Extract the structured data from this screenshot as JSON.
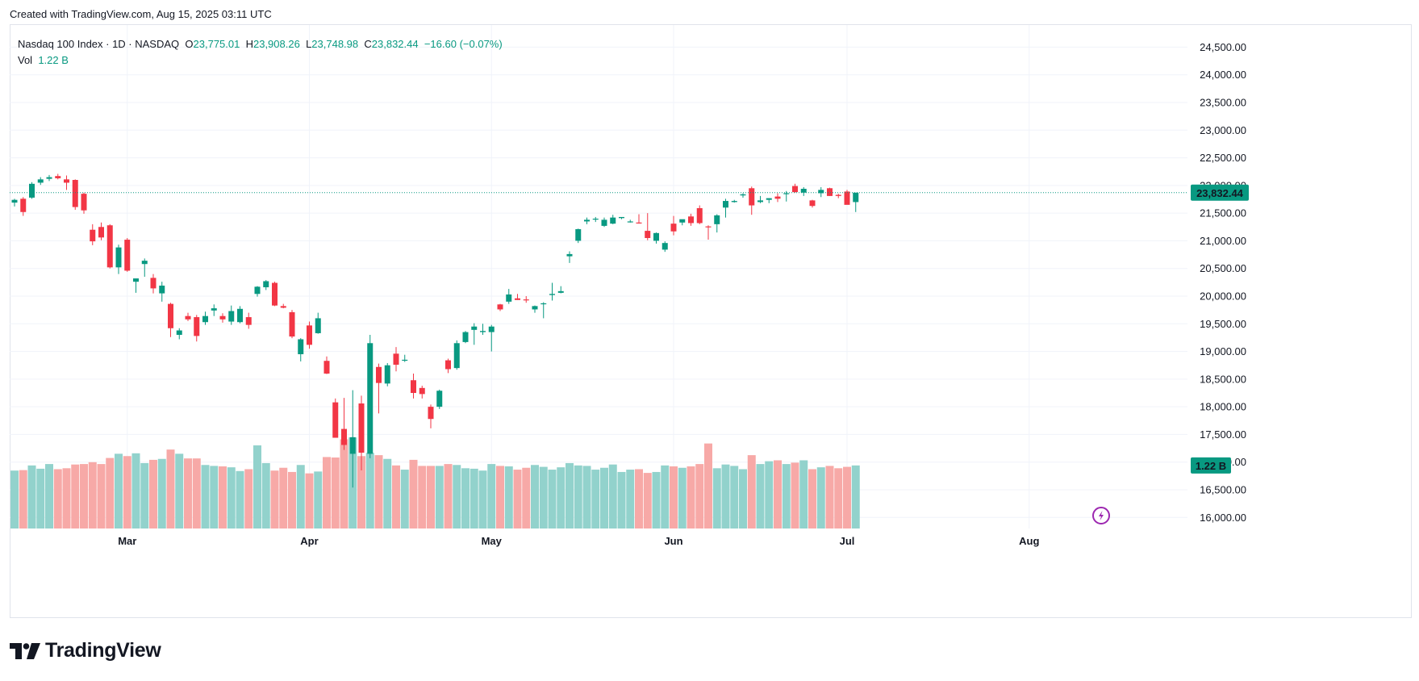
{
  "header": {
    "credit": "Created with TradingView.com, Aug 15, 2025 03:11 UTC"
  },
  "legend": {
    "symbol": "Nasdaq 100 Index · 1D · NASDAQ",
    "o_label": "O",
    "o_value": "23,775.01",
    "h_label": "H",
    "h_value": "23,908.26",
    "l_label": "L",
    "l_value": "23,748.98",
    "c_label": "C",
    "c_value": "23,832.44",
    "change": "−16.60 (−0.07%)",
    "vol_label": "Vol",
    "vol_value": "1.22 B"
  },
  "branding": {
    "name": "TradingView",
    "logo_icon": "tradingview-logo-icon",
    "lightning_icon": "lightning-icon"
  },
  "colors": {
    "up": "#089981",
    "down": "#f23645",
    "up_vol": "#92d2cc",
    "down_vol": "#f7a9a7",
    "grid": "#f0f3fa",
    "price_line": "#089981"
  },
  "chart_data": {
    "type": "candlestick",
    "title": "Nasdaq 100 Index · 1D · NASDAQ",
    "ylim": [
      15800,
      24900
    ],
    "y_ticks": [
      "24,500.00",
      "24,000.00",
      "23,500.00",
      "23,000.00",
      "22,500.00",
      "22,000.00",
      "21,500.00",
      "21,000.00",
      "20,500.00",
      "20,000.00",
      "19,500.00",
      "19,000.00",
      "18,500.00",
      "18,000.00",
      "17,500.00",
      "17,000.00",
      "16,500.00",
      "16,000.00"
    ],
    "x_labels": [
      {
        "label": "Mar",
        "index": 13
      },
      {
        "label": "Apr",
        "index": 34
      },
      {
        "label": "May",
        "index": 55
      },
      {
        "label": "Jun",
        "index": 76
      },
      {
        "label": "Jul",
        "index": 96
      },
      {
        "label": "Aug",
        "index": 117
      }
    ],
    "last_price_label": "23,832.44",
    "last_volume_label": "1.22 B",
    "volume_max": 1.9,
    "candles": [
      [
        21690,
        21760,
        21620,
        21740,
        1.24
      ],
      [
        21760,
        21790,
        21450,
        21520,
        1.25
      ],
      [
        21780,
        22060,
        21760,
        22030,
        1.35
      ],
      [
        22050,
        22150,
        22010,
        22110,
        1.28
      ],
      [
        22120,
        22190,
        22080,
        22150,
        1.38
      ],
      [
        22170,
        22210,
        22110,
        22130,
        1.27
      ],
      [
        22110,
        22180,
        21920,
        22050,
        1.29
      ],
      [
        22100,
        22110,
        21560,
        21610,
        1.37
      ],
      [
        21850,
        21870,
        21490,
        21550,
        1.38
      ],
      [
        21200,
        21300,
        20920,
        20990,
        1.42
      ],
      [
        21250,
        21330,
        21010,
        21060,
        1.38
      ],
      [
        21280,
        21300,
        20500,
        20520,
        1.51
      ],
      [
        20520,
        20930,
        20400,
        20880,
        1.6
      ],
      [
        21020,
        21050,
        20440,
        20460,
        1.55
      ],
      [
        20260,
        20300,
        20060,
        20320,
        1.61
      ],
      [
        20580,
        20680,
        20350,
        20640,
        1.4
      ],
      [
        20330,
        20400,
        20050,
        20140,
        1.47
      ],
      [
        20050,
        20260,
        19900,
        20190,
        1.49
      ],
      [
        19860,
        19880,
        19260,
        19420,
        1.69
      ],
      [
        19300,
        19420,
        19220,
        19380,
        1.6
      ],
      [
        19640,
        19700,
        19550,
        19580,
        1.5
      ],
      [
        19620,
        19660,
        19180,
        19280,
        1.5
      ],
      [
        19530,
        19720,
        19480,
        19640,
        1.36
      ],
      [
        19740,
        19850,
        19640,
        19780,
        1.34
      ],
      [
        19640,
        19690,
        19520,
        19580,
        1.33
      ],
      [
        19540,
        19830,
        19480,
        19730,
        1.31
      ],
      [
        19530,
        19820,
        19510,
        19770,
        1.23
      ],
      [
        19620,
        19700,
        19410,
        19480,
        1.27
      ],
      [
        20040,
        20180,
        19990,
        20170,
        1.78
      ],
      [
        20160,
        20290,
        20110,
        20270,
        1.4
      ],
      [
        20240,
        20260,
        19820,
        19830,
        1.24
      ],
      [
        19820,
        19860,
        19780,
        19790,
        1.3
      ],
      [
        19710,
        19750,
        19240,
        19270,
        1.21
      ],
      [
        18950,
        19240,
        18820,
        19220,
        1.36
      ],
      [
        19470,
        19540,
        19050,
        19120,
        1.18
      ],
      [
        19330,
        19700,
        19320,
        19600,
        1.22
      ],
      [
        18830,
        18910,
        18590,
        18600,
        1.53
      ],
      [
        18080,
        18150,
        17500,
        17440,
        1.52
      ],
      [
        17600,
        18160,
        17220,
        17310,
        1.91
      ],
      [
        17150,
        18300,
        16540,
        17450,
        1.95
      ],
      [
        18060,
        18200,
        16850,
        17170,
        1.55
      ],
      [
        17150,
        19300,
        17070,
        19150,
        1.62
      ],
      [
        18720,
        18780,
        17880,
        18430,
        1.57
      ],
      [
        18420,
        18790,
        18370,
        18750,
        1.49
      ],
      [
        18960,
        19080,
        18640,
        18760,
        1.35
      ],
      [
        18840,
        18940,
        18810,
        18850,
        1.26
      ],
      [
        18480,
        18600,
        18150,
        18250,
        1.47
      ],
      [
        18340,
        18380,
        18150,
        18230,
        1.34
      ],
      [
        18000,
        18040,
        17610,
        17780,
        1.34
      ],
      [
        18000,
        18310,
        17960,
        18290,
        1.34
      ],
      [
        18840,
        18870,
        18610,
        18680,
        1.38
      ],
      [
        18700,
        19200,
        18670,
        19150,
        1.36
      ],
      [
        19170,
        19370,
        19150,
        19350,
        1.29
      ],
      [
        19390,
        19510,
        19120,
        19450,
        1.28
      ],
      [
        19350,
        19500,
        19300,
        19370,
        1.24
      ],
      [
        19350,
        19480,
        19000,
        19450,
        1.38
      ],
      [
        19850,
        19860,
        19730,
        19760,
        1.34
      ],
      [
        19900,
        20130,
        19860,
        20030,
        1.33
      ],
      [
        19960,
        20040,
        19930,
        19930,
        1.26
      ],
      [
        19940,
        20000,
        19880,
        19930,
        1.3
      ],
      [
        19760,
        19830,
        19700,
        19820,
        1.36
      ],
      [
        19870,
        19890,
        19600,
        19870,
        1.32
      ],
      [
        20020,
        20240,
        19920,
        20040,
        1.26
      ],
      [
        20060,
        20180,
        20050,
        20090,
        1.31
      ],
      [
        20720,
        20810,
        20600,
        20760,
        1.4
      ],
      [
        21000,
        21220,
        20960,
        21210,
        1.35
      ],
      [
        21350,
        21420,
        21300,
        21380,
        1.34
      ],
      [
        21400,
        21430,
        21340,
        21400,
        1.26
      ],
      [
        21270,
        21420,
        21250,
        21380,
        1.3
      ],
      [
        21310,
        21470,
        21300,
        21420,
        1.37
      ],
      [
        21410,
        21430,
        21390,
        21430,
        1.21
      ],
      [
        21340,
        21380,
        21330,
        21350,
        1.26
      ],
      [
        21330,
        21480,
        21310,
        21320,
        1.27
      ],
      [
        21180,
        21500,
        21010,
        21050,
        1.19
      ],
      [
        21000,
        21150,
        20950,
        21140,
        1.21
      ],
      [
        20840,
        20990,
        20800,
        20960,
        1.35
      ],
      [
        21310,
        21450,
        21100,
        21170,
        1.33
      ],
      [
        21330,
        21370,
        21280,
        21390,
        1.3
      ],
      [
        21440,
        21490,
        21270,
        21320,
        1.33
      ],
      [
        21590,
        21640,
        21300,
        21320,
        1.38
      ],
      [
        21260,
        21280,
        21020,
        21250,
        1.82
      ],
      [
        21300,
        21480,
        21150,
        21460,
        1.29
      ],
      [
        21600,
        21760,
        21420,
        21720,
        1.37
      ],
      [
        21700,
        21740,
        21690,
        21720,
        1.34
      ],
      [
        21820,
        21860,
        21780,
        21840,
        1.27
      ],
      [
        21950,
        21980,
        21470,
        21640,
        1.57
      ],
      [
        21700,
        21810,
        21680,
        21730,
        1.38
      ],
      [
        21740,
        21770,
        21680,
        21770,
        1.44
      ],
      [
        21800,
        21860,
        21700,
        21760,
        1.46
      ],
      [
        21850,
        21900,
        21710,
        21860,
        1.38
      ],
      [
        21990,
        22030,
        21870,
        21880,
        1.41
      ],
      [
        21870,
        21970,
        21810,
        21940,
        1.46
      ],
      [
        21730,
        21740,
        21600,
        21630,
        1.27
      ],
      [
        21860,
        21970,
        21790,
        21920,
        1.31
      ],
      [
        21950,
        21960,
        21810,
        21810,
        1.34
      ],
      [
        21830,
        21850,
        21770,
        21810,
        1.29
      ],
      [
        21890,
        21920,
        21660,
        21650,
        1.32
      ],
      [
        21700,
        21860,
        21520,
        21870,
        1.35
      ]
    ]
  }
}
